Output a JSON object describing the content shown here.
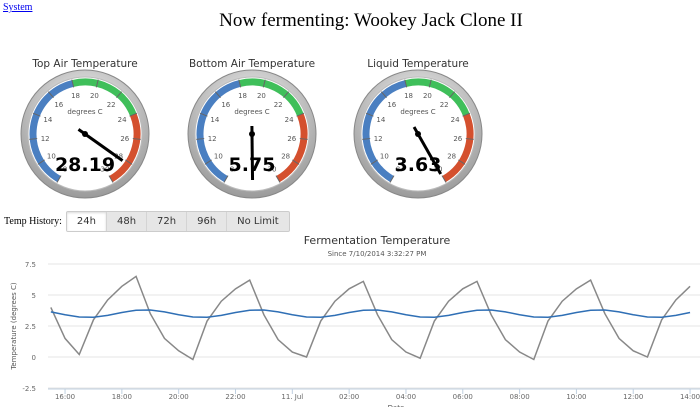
{
  "system_link": "System",
  "title": "Now fermenting: Wookey Jack Clone II",
  "gauges": [
    {
      "title": "Top Air Temperature",
      "value": 28.19
    },
    {
      "title": "Bottom Air Temperature",
      "value": 5.75
    },
    {
      "title": "Liquid Temperature",
      "value": 3.63
    }
  ],
  "gauge_unit": "degrees C",
  "gauge_range": [
    8,
    30
  ],
  "gauge_ticks": [
    8,
    10,
    12,
    14,
    16,
    18,
    20,
    22,
    24,
    26,
    28,
    30
  ],
  "gauge_bands": [
    {
      "from": 8,
      "to": 18,
      "color": "#4a7fc1"
    },
    {
      "from": 18,
      "to": 24,
      "color": "#3fbf5a"
    },
    {
      "from": 24,
      "to": 30,
      "color": "#d4502e"
    }
  ],
  "history": {
    "label": "Temp History:",
    "buttons": [
      "24h",
      "48h",
      "72h",
      "96h",
      "No Limit"
    ],
    "selected": 0
  },
  "chart_data": {
    "type": "line",
    "title": "Fermentation Temperature",
    "subtitle": "Since 7/10/2014 3:32:27 PM",
    "y_label": "Temperature (degrees C)",
    "x_label": "Date",
    "x": [
      15.5,
      16,
      16.5,
      17,
      17.5,
      18,
      18.5,
      19,
      19.5,
      20,
      20.5,
      21,
      21.5,
      22,
      22.5,
      23,
      23.5,
      24,
      24.5,
      25,
      25.5,
      26,
      26.5,
      27,
      27.5,
      28,
      28.5,
      29,
      29.5,
      30,
      30.5,
      31,
      31.5,
      32,
      32.5,
      33,
      33.5,
      34,
      34.5,
      35,
      35.5,
      36,
      36.5,
      37,
      37.5,
      38
    ],
    "series": [
      {
        "color": "#888888",
        "values": [
          4.0,
          1.5,
          0.2,
          3.0,
          4.6,
          5.7,
          6.5,
          3.5,
          1.5,
          0.5,
          -0.2,
          2.9,
          4.5,
          5.5,
          6.2,
          3.4,
          1.4,
          0.4,
          0.0,
          2.9,
          4.5,
          5.5,
          6.1,
          3.4,
          1.4,
          0.4,
          -0.1,
          2.9,
          4.5,
          5.5,
          6.1,
          3.4,
          1.4,
          0.4,
          -0.2,
          2.9,
          4.5,
          5.5,
          6.2,
          3.5,
          1.5,
          0.5,
          0.0,
          3.0,
          4.6,
          5.7
        ]
      },
      {
        "color": "#2f6fb5",
        "values": [
          3.64,
          3.41,
          3.23,
          3.21,
          3.36,
          3.59,
          3.77,
          3.79,
          3.64,
          3.41,
          3.23,
          3.21,
          3.36,
          3.59,
          3.77,
          3.79,
          3.64,
          3.41,
          3.23,
          3.21,
          3.36,
          3.59,
          3.77,
          3.79,
          3.64,
          3.41,
          3.23,
          3.21,
          3.36,
          3.59,
          3.77,
          3.79,
          3.64,
          3.41,
          3.23,
          3.21,
          3.36,
          3.59,
          3.77,
          3.79,
          3.64,
          3.41,
          3.23,
          3.21,
          3.36,
          3.59
        ]
      }
    ],
    "xlim": [
      15.4,
      38.35
    ],
    "xticks": [
      {
        "value": 16,
        "label": "16:00"
      },
      {
        "value": 18,
        "label": "18:00"
      },
      {
        "value": 20,
        "label": "20:00"
      },
      {
        "value": 22,
        "label": "22:00"
      },
      {
        "value": 24,
        "label": "11. Jul"
      },
      {
        "value": 26,
        "label": "02:00"
      },
      {
        "value": 28,
        "label": "04:00"
      },
      {
        "value": 30,
        "label": "06:00"
      },
      {
        "value": 32,
        "label": "08:00"
      },
      {
        "value": 34,
        "label": "10:00"
      },
      {
        "value": 36,
        "label": "12:00"
      },
      {
        "value": 38,
        "label": "14:00"
      }
    ],
    "ylim": [
      -2.5,
      7.5
    ],
    "yticks": [
      -2.5,
      0,
      2.5,
      5,
      7.5
    ],
    "grid": true
  }
}
